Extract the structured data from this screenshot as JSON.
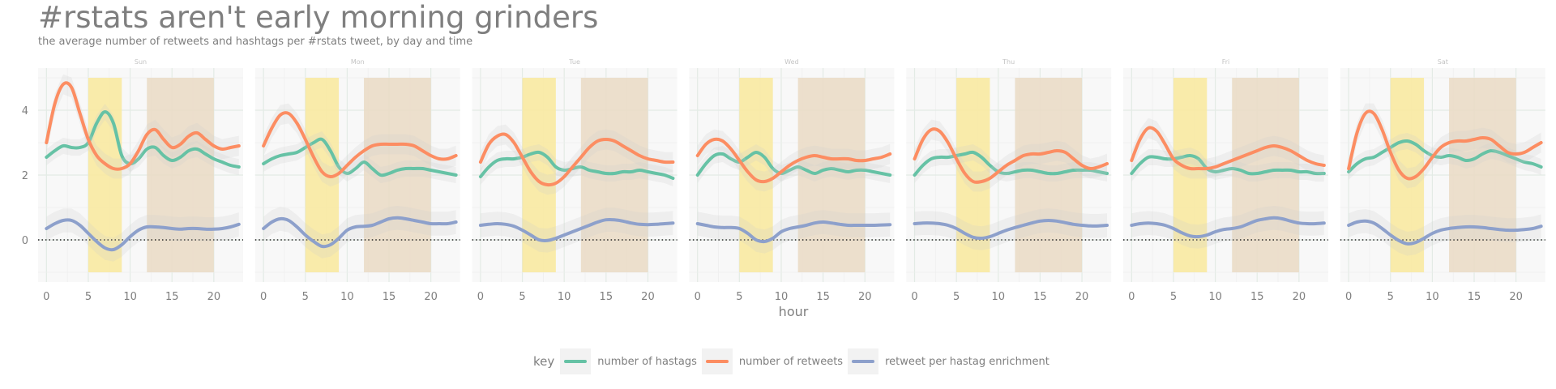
{
  "title": "#rstats aren't early morning grinders",
  "subtitle": "the average number of retweets and hashtags per #rstats tweet, by day and time",
  "chart_data": {
    "type": "line",
    "facets": [
      "Sun",
      "Mon",
      "Tue",
      "Wed",
      "Thu",
      "Fri",
      "Sat"
    ],
    "xlabel": "hour",
    "ylabel": "",
    "xlim": [
      -1,
      23.5
    ],
    "ylim": [
      -1.3,
      5.3
    ],
    "x_ticks": [
      "0",
      "5",
      "10",
      "15",
      "20"
    ],
    "y_ticks": [
      "0",
      "2",
      "4"
    ],
    "x": [
      0,
      1,
      2,
      3,
      4,
      5,
      6,
      7,
      8,
      9,
      10,
      11,
      12,
      13,
      14,
      15,
      16,
      17,
      18,
      19,
      20,
      21,
      22,
      23
    ],
    "reference_line_y": 0,
    "shaded_regions": [
      {
        "x": [
          5,
          9
        ],
        "y": [
          -1,
          5
        ],
        "color": "#f8e9a1"
      },
      {
        "x": [
          12,
          20
        ],
        "y": [
          -1,
          5
        ],
        "color": "#eadcc6"
      }
    ],
    "legend_title": "key",
    "legend_position": "bottom",
    "grid": true,
    "series": [
      {
        "name": "number of hastags",
        "color": "#66c2a5",
        "values": {
          "Sun": [
            2.55,
            2.75,
            2.9,
            2.85,
            2.85,
            3.0,
            3.6,
            3.95,
            3.6,
            2.6,
            2.35,
            2.5,
            2.8,
            2.85,
            2.6,
            2.45,
            2.55,
            2.75,
            2.8,
            2.65,
            2.5,
            2.4,
            2.3,
            2.25
          ],
          "Mon": [
            2.35,
            2.5,
            2.6,
            2.65,
            2.7,
            2.85,
            3.0,
            3.1,
            2.75,
            2.25,
            2.05,
            2.2,
            2.4,
            2.2,
            2.0,
            2.05,
            2.15,
            2.2,
            2.2,
            2.2,
            2.15,
            2.1,
            2.05,
            2.0
          ],
          "Tue": [
            1.95,
            2.25,
            2.45,
            2.5,
            2.5,
            2.55,
            2.65,
            2.7,
            2.55,
            2.25,
            2.15,
            2.2,
            2.25,
            2.15,
            2.1,
            2.05,
            2.05,
            2.1,
            2.1,
            2.15,
            2.1,
            2.05,
            2.0,
            1.9
          ],
          "Wed": [
            2.0,
            2.35,
            2.6,
            2.65,
            2.5,
            2.4,
            2.55,
            2.7,
            2.55,
            2.2,
            2.05,
            2.15,
            2.25,
            2.15,
            2.05,
            2.15,
            2.2,
            2.15,
            2.1,
            2.15,
            2.15,
            2.1,
            2.05,
            2.0
          ],
          "Thu": [
            2.0,
            2.3,
            2.5,
            2.55,
            2.55,
            2.6,
            2.65,
            2.7,
            2.55,
            2.3,
            2.1,
            2.05,
            2.1,
            2.15,
            2.15,
            2.1,
            2.05,
            2.05,
            2.1,
            2.15,
            2.15,
            2.15,
            2.1,
            2.05
          ],
          "Fri": [
            2.05,
            2.35,
            2.55,
            2.55,
            2.5,
            2.5,
            2.55,
            2.6,
            2.5,
            2.2,
            2.1,
            2.15,
            2.2,
            2.15,
            2.05,
            2.05,
            2.1,
            2.15,
            2.15,
            2.15,
            2.1,
            2.1,
            2.05,
            2.05
          ],
          "Sat": [
            2.1,
            2.35,
            2.5,
            2.55,
            2.7,
            2.85,
            3.0,
            3.05,
            2.95,
            2.75,
            2.6,
            2.55,
            2.6,
            2.55,
            2.45,
            2.5,
            2.65,
            2.75,
            2.7,
            2.6,
            2.5,
            2.4,
            2.35,
            2.25
          ]
        }
      },
      {
        "name": "number of retweets",
        "color": "#fc8d62",
        "values": {
          "Sun": [
            3.0,
            4.2,
            4.8,
            4.7,
            3.9,
            3.1,
            2.6,
            2.35,
            2.2,
            2.2,
            2.35,
            2.75,
            3.25,
            3.4,
            3.1,
            2.85,
            2.95,
            3.2,
            3.3,
            3.1,
            2.9,
            2.8,
            2.85,
            2.9
          ],
          "Mon": [
            2.9,
            3.45,
            3.85,
            3.9,
            3.6,
            3.1,
            2.55,
            2.1,
            1.95,
            2.05,
            2.3,
            2.55,
            2.75,
            2.9,
            2.95,
            2.95,
            2.95,
            2.95,
            2.9,
            2.75,
            2.6,
            2.5,
            2.5,
            2.6
          ],
          "Tue": [
            2.4,
            2.95,
            3.2,
            3.25,
            3.0,
            2.55,
            2.1,
            1.8,
            1.7,
            1.75,
            1.95,
            2.25,
            2.55,
            2.85,
            3.05,
            3.1,
            3.05,
            2.9,
            2.75,
            2.6,
            2.5,
            2.45,
            2.4,
            2.4
          ],
          "Wed": [
            2.6,
            2.95,
            3.1,
            3.05,
            2.8,
            2.45,
            2.1,
            1.85,
            1.8,
            1.9,
            2.1,
            2.3,
            2.45,
            2.55,
            2.6,
            2.55,
            2.5,
            2.5,
            2.5,
            2.45,
            2.45,
            2.5,
            2.55,
            2.65
          ],
          "Thu": [
            2.5,
            3.1,
            3.4,
            3.35,
            3.0,
            2.5,
            2.05,
            1.8,
            1.8,
            1.9,
            2.1,
            2.3,
            2.45,
            2.6,
            2.65,
            2.65,
            2.7,
            2.75,
            2.7,
            2.5,
            2.3,
            2.2,
            2.25,
            2.35
          ],
          "Fri": [
            2.45,
            3.1,
            3.45,
            3.35,
            2.95,
            2.5,
            2.3,
            2.2,
            2.2,
            2.2,
            2.25,
            2.35,
            2.45,
            2.55,
            2.65,
            2.75,
            2.85,
            2.9,
            2.85,
            2.75,
            2.6,
            2.45,
            2.35,
            2.3
          ],
          "Sat": [
            2.2,
            3.3,
            3.9,
            3.9,
            3.4,
            2.7,
            2.15,
            1.9,
            1.95,
            2.2,
            2.55,
            2.85,
            3.0,
            3.05,
            3.05,
            3.1,
            3.15,
            3.1,
            2.9,
            2.7,
            2.65,
            2.7,
            2.85,
            3.0
          ]
        }
      },
      {
        "name": "retweet per hastag enrichment",
        "color": "#8da0cb",
        "values": {
          "Sun": [
            0.35,
            0.5,
            0.6,
            0.6,
            0.45,
            0.2,
            -0.05,
            -0.25,
            -0.3,
            -0.15,
            0.1,
            0.3,
            0.4,
            0.4,
            0.38,
            0.35,
            0.33,
            0.35,
            0.35,
            0.33,
            0.33,
            0.35,
            0.4,
            0.48
          ],
          "Mon": [
            0.35,
            0.55,
            0.65,
            0.6,
            0.4,
            0.15,
            -0.05,
            -0.2,
            -0.15,
            0.05,
            0.3,
            0.4,
            0.42,
            0.45,
            0.55,
            0.65,
            0.68,
            0.65,
            0.6,
            0.55,
            0.5,
            0.5,
            0.5,
            0.55
          ],
          "Tue": [
            0.45,
            0.48,
            0.5,
            0.48,
            0.42,
            0.3,
            0.15,
            0.0,
            -0.02,
            0.05,
            0.15,
            0.25,
            0.35,
            0.45,
            0.55,
            0.62,
            0.62,
            0.58,
            0.52,
            0.48,
            0.47,
            0.48,
            0.5,
            0.52
          ],
          "Wed": [
            0.5,
            0.45,
            0.4,
            0.38,
            0.38,
            0.35,
            0.2,
            0.0,
            -0.05,
            0.05,
            0.25,
            0.35,
            0.4,
            0.45,
            0.52,
            0.55,
            0.52,
            0.48,
            0.45,
            0.45,
            0.45,
            0.45,
            0.46,
            0.47
          ],
          "Thu": [
            0.5,
            0.52,
            0.52,
            0.5,
            0.45,
            0.35,
            0.2,
            0.08,
            0.05,
            0.1,
            0.2,
            0.3,
            0.38,
            0.45,
            0.52,
            0.58,
            0.6,
            0.58,
            0.53,
            0.48,
            0.45,
            0.43,
            0.43,
            0.45
          ],
          "Fri": [
            0.45,
            0.5,
            0.52,
            0.5,
            0.45,
            0.35,
            0.22,
            0.12,
            0.1,
            0.15,
            0.25,
            0.32,
            0.35,
            0.4,
            0.5,
            0.6,
            0.65,
            0.68,
            0.65,
            0.58,
            0.52,
            0.5,
            0.5,
            0.52
          ],
          "Sat": [
            0.45,
            0.55,
            0.58,
            0.52,
            0.35,
            0.15,
            -0.02,
            -0.12,
            -0.08,
            0.05,
            0.2,
            0.3,
            0.35,
            0.38,
            0.4,
            0.4,
            0.38,
            0.35,
            0.32,
            0.3,
            0.3,
            0.32,
            0.35,
            0.42
          ]
        }
      }
    ]
  }
}
